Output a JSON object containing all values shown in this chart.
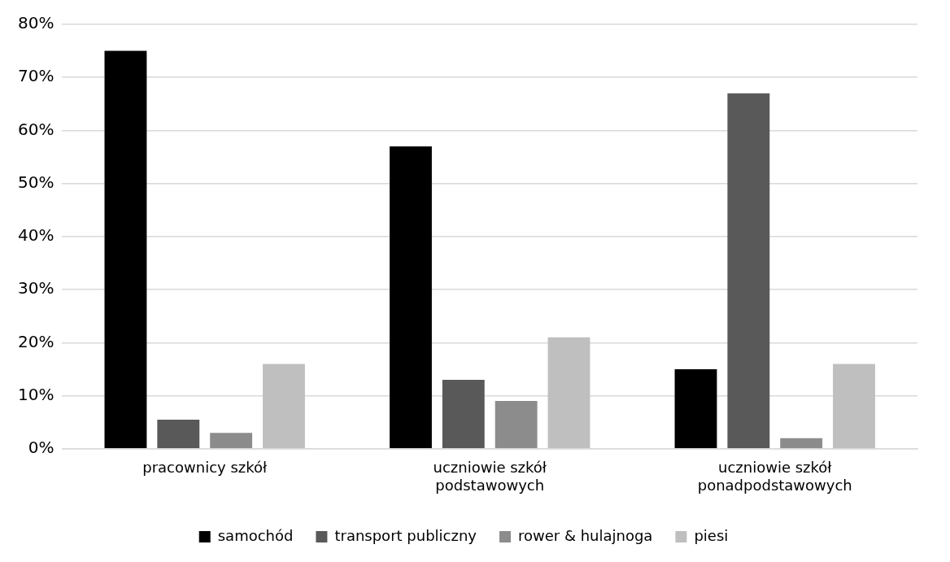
{
  "chart_data": {
    "type": "bar",
    "categories": [
      "pracownicy szkół",
      "uczniowie szkół podstawowych",
      "uczniowie szkół ponadpodstawowych"
    ],
    "series": [
      {
        "name": "samochód",
        "color": "#000000",
        "values": [
          75,
          57,
          15
        ]
      },
      {
        "name": "transport publiczny",
        "color": "#595959",
        "values": [
          5.5,
          13,
          67
        ]
      },
      {
        "name": "rower & hulajnoga",
        "color": "#8c8c8c",
        "values": [
          3,
          9,
          2
        ]
      },
      {
        "name": "piesi",
        "color": "#bfbfbf",
        "values": [
          16,
          21,
          16
        ]
      }
    ],
    "ylim": [
      0,
      80
    ],
    "yticks": [
      {
        "value": 0,
        "label": "0%"
      },
      {
        "value": 10,
        "label": "10%"
      },
      {
        "value": 20,
        "label": "20%"
      },
      {
        "value": 30,
        "label": "30%"
      },
      {
        "value": 40,
        "label": "40%"
      },
      {
        "value": 50,
        "label": "50%"
      },
      {
        "value": 60,
        "label": "60%"
      },
      {
        "value": 70,
        "label": "70%"
      },
      {
        "value": 80,
        "label": "80%"
      }
    ],
    "grid": "y",
    "legend": "bottom"
  }
}
